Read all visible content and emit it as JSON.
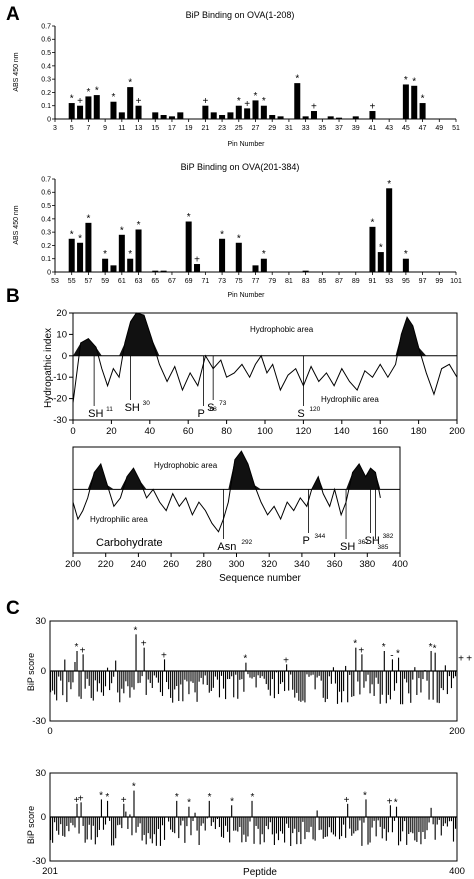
{
  "panel_labels": [
    "A",
    "B",
    "C"
  ],
  "chart_data": [
    {
      "panel": "A",
      "type": "bar",
      "title": "BiP Binding on OVA(1-208)",
      "xlabel": "Pin Number",
      "ylabel": "ABS 450 nm",
      "xlim": [
        3,
        51
      ],
      "ylim": [
        0,
        0.7
      ],
      "xticks": [
        3,
        5,
        7,
        9,
        11,
        13,
        15,
        17,
        19,
        21,
        23,
        25,
        27,
        29,
        31,
        33,
        35,
        37,
        39,
        41,
        43,
        45,
        47,
        49,
        51
      ],
      "yticks": [
        "0",
        "0.1",
        "0.2",
        "0.3",
        "0.4",
        "0.5",
        "0.6",
        "0.7"
      ],
      "points": [
        {
          "x": 5,
          "y": 0.12,
          "m": "*"
        },
        {
          "x": 6,
          "y": 0.1,
          "m": "+"
        },
        {
          "x": 7,
          "y": 0.17,
          "m": "*"
        },
        {
          "x": 8,
          "y": 0.18,
          "m": "*"
        },
        {
          "x": 10,
          "y": 0.13,
          "m": "*"
        },
        {
          "x": 11,
          "y": 0.05,
          "m": ""
        },
        {
          "x": 12,
          "y": 0.24,
          "m": "*"
        },
        {
          "x": 13,
          "y": 0.1,
          "m": "+"
        },
        {
          "x": 15,
          "y": 0.05,
          "m": ""
        },
        {
          "x": 16,
          "y": 0.03,
          "m": ""
        },
        {
          "x": 17,
          "y": 0.02,
          "m": ""
        },
        {
          "x": 18,
          "y": 0.05,
          "m": ""
        },
        {
          "x": 21,
          "y": 0.1,
          "m": "+"
        },
        {
          "x": 22,
          "y": 0.05,
          "m": ""
        },
        {
          "x": 23,
          "y": 0.03,
          "m": ""
        },
        {
          "x": 24,
          "y": 0.05,
          "m": ""
        },
        {
          "x": 25,
          "y": 0.1,
          "m": "*"
        },
        {
          "x": 26,
          "y": 0.08,
          "m": "+"
        },
        {
          "x": 27,
          "y": 0.14,
          "m": "*"
        },
        {
          "x": 28,
          "y": 0.1,
          "m": "*"
        },
        {
          "x": 29,
          "y": 0.03,
          "m": ""
        },
        {
          "x": 30,
          "y": 0.02,
          "m": ""
        },
        {
          "x": 32,
          "y": 0.27,
          "m": "*"
        },
        {
          "x": 33,
          "y": 0.02,
          "m": ""
        },
        {
          "x": 34,
          "y": 0.06,
          "m": "+"
        },
        {
          "x": 36,
          "y": 0.02,
          "m": ""
        },
        {
          "x": 37,
          "y": 0.01,
          "m": ""
        },
        {
          "x": 39,
          "y": 0.02,
          "m": ""
        },
        {
          "x": 41,
          "y": 0.06,
          "m": "+"
        },
        {
          "x": 45,
          "y": 0.26,
          "m": "*"
        },
        {
          "x": 46,
          "y": 0.25,
          "m": "*"
        },
        {
          "x": 47,
          "y": 0.12,
          "m": "*"
        }
      ]
    },
    {
      "panel": "A",
      "type": "bar",
      "title": "BiP Binding on OVA(201-384)",
      "xlabel": "Pin Number",
      "ylabel": "ABS 450 nm",
      "xlim": [
        53,
        101
      ],
      "ylim": [
        0,
        0.7
      ],
      "xticks": [
        53,
        55,
        57,
        59,
        61,
        63,
        65,
        67,
        69,
        71,
        73,
        75,
        77,
        79,
        81,
        83,
        85,
        87,
        89,
        91,
        93,
        95,
        97,
        99,
        101
      ],
      "yticks": [
        "0",
        "0.1",
        "0.2",
        "0.3",
        "0.4",
        "0.5",
        "0.6",
        "0.7"
      ],
      "points": [
        {
          "x": 55,
          "y": 0.25,
          "m": "*"
        },
        {
          "x": 56,
          "y": 0.22,
          "m": "*"
        },
        {
          "x": 57,
          "y": 0.37,
          "m": "*"
        },
        {
          "x": 59,
          "y": 0.1,
          "m": "*"
        },
        {
          "x": 60,
          "y": 0.05,
          "m": ""
        },
        {
          "x": 61,
          "y": 0.28,
          "m": "*"
        },
        {
          "x": 62,
          "y": 0.1,
          "m": "*"
        },
        {
          "x": 63,
          "y": 0.32,
          "m": "*"
        },
        {
          "x": 65,
          "y": 0.01,
          "m": ""
        },
        {
          "x": 66,
          "y": 0.01,
          "m": ""
        },
        {
          "x": 69,
          "y": 0.38,
          "m": "*"
        },
        {
          "x": 70,
          "y": 0.06,
          "m": "+"
        },
        {
          "x": 73,
          "y": 0.25,
          "m": "*"
        },
        {
          "x": 75,
          "y": 0.22,
          "m": "*"
        },
        {
          "x": 77,
          "y": 0.05,
          "m": ""
        },
        {
          "x": 78,
          "y": 0.1,
          "m": "*"
        },
        {
          "x": 83,
          "y": 0.01,
          "m": ""
        },
        {
          "x": 91,
          "y": 0.34,
          "m": "*"
        },
        {
          "x": 92,
          "y": 0.15,
          "m": "*"
        },
        {
          "x": 93,
          "y": 0.63,
          "m": "*"
        },
        {
          "x": 95,
          "y": 0.1,
          "m": "*"
        }
      ]
    },
    {
      "panel": "B",
      "type": "line",
      "ylabel": "Hydropathic index",
      "xlabel": "",
      "xlim": [
        0,
        200
      ],
      "ylim": [
        -30,
        20
      ],
      "xticks": [
        0,
        20,
        40,
        60,
        80,
        100,
        120,
        140,
        160,
        180,
        200
      ],
      "yticks": [
        -30,
        -20,
        -10,
        0,
        10,
        20
      ],
      "region_labels": [
        "Hydrophobic area",
        "Hydrophilic area"
      ],
      "annotations": [
        {
          "text": "SH",
          "sup": "11",
          "x": 11
        },
        {
          "text": "SH",
          "sup": "30",
          "x": 30
        },
        {
          "text": "P",
          "sup": "68",
          "x": 68
        },
        {
          "text": "S",
          "sup": "73",
          "x": 73
        },
        {
          "text": "S",
          "sup": "120",
          "x": 120
        }
      ],
      "profile": [
        [
          0,
          -22
        ],
        [
          4,
          6
        ],
        [
          8,
          8
        ],
        [
          12,
          4
        ],
        [
          15,
          -6
        ],
        [
          18,
          -14
        ],
        [
          21,
          -6
        ],
        [
          24,
          -10
        ],
        [
          27,
          6
        ],
        [
          30,
          16
        ],
        [
          33,
          20
        ],
        [
          37,
          19
        ],
        [
          41,
          8
        ],
        [
          45,
          -4
        ],
        [
          49,
          -12
        ],
        [
          53,
          -5
        ],
        [
          57,
          -16
        ],
        [
          61,
          -8
        ],
        [
          65,
          -14
        ],
        [
          69,
          0
        ],
        [
          73,
          -6
        ],
        [
          77,
          -2
        ],
        [
          80,
          -10
        ],
        [
          84,
          -8
        ],
        [
          88,
          -4
        ],
        [
          92,
          -10
        ],
        [
          95,
          -4
        ],
        [
          98,
          0
        ],
        [
          101,
          -8
        ],
        [
          104,
          -4
        ],
        [
          108,
          -16
        ],
        [
          112,
          -9
        ],
        [
          116,
          -6
        ],
        [
          120,
          -14
        ],
        [
          124,
          -5
        ],
        [
          128,
          -12
        ],
        [
          132,
          -8
        ],
        [
          136,
          -14
        ],
        [
          140,
          -6
        ],
        [
          144,
          -12
        ],
        [
          148,
          -16
        ],
        [
          152,
          -7
        ],
        [
          156,
          -10
        ],
        [
          160,
          -4
        ],
        [
          164,
          -10
        ],
        [
          168,
          -4
        ],
        [
          171,
          10
        ],
        [
          174,
          18
        ],
        [
          177,
          14
        ],
        [
          180,
          4
        ],
        [
          184,
          -8
        ],
        [
          188,
          -18
        ],
        [
          192,
          -6
        ],
        [
          196,
          -4
        ],
        [
          200,
          -10
        ]
      ]
    },
    {
      "panel": "B",
      "type": "line",
      "xlabel": "Sequence number",
      "ylabel": "",
      "xlim": [
        200,
        400
      ],
      "ylim": [
        -30,
        20
      ],
      "xticks": [
        200,
        220,
        240,
        260,
        280,
        300,
        320,
        340,
        360,
        380,
        400
      ],
      "region_labels": [
        "Hydrophobic area",
        "Hydrophilic area",
        "Carbohydrate"
      ],
      "annotations": [
        {
          "text": "Asn",
          "sup": "292",
          "x": 292
        },
        {
          "text": "P",
          "sup": "344",
          "x": 344
        },
        {
          "text": "SH",
          "sup": "367",
          "x": 367
        },
        {
          "text": "SH",
          "sup": "382",
          "x": 382
        },
        {
          "text": "",
          "sup": "385",
          "x": 385
        }
      ],
      "profile": [
        [
          200,
          -6
        ],
        [
          203,
          -14
        ],
        [
          206,
          -10
        ],
        [
          209,
          -4
        ],
        [
          213,
          8
        ],
        [
          217,
          12
        ],
        [
          221,
          2
        ],
        [
          225,
          -8
        ],
        [
          229,
          -4
        ],
        [
          233,
          6
        ],
        [
          237,
          10
        ],
        [
          241,
          4
        ],
        [
          245,
          -4
        ],
        [
          249,
          0
        ],
        [
          253,
          -6
        ],
        [
          257,
          -10
        ],
        [
          261,
          -2
        ],
        [
          265,
          -8
        ],
        [
          269,
          -4
        ],
        [
          273,
          -12
        ],
        [
          277,
          -6
        ],
        [
          281,
          -10
        ],
        [
          285,
          -16
        ],
        [
          289,
          -20
        ],
        [
          292,
          -14
        ],
        [
          295,
          -6
        ],
        [
          299,
          14
        ],
        [
          303,
          18
        ],
        [
          307,
          12
        ],
        [
          311,
          2
        ],
        [
          315,
          -6
        ],
        [
          319,
          -12
        ],
        [
          323,
          -8
        ],
        [
          327,
          -14
        ],
        [
          331,
          -6
        ],
        [
          335,
          -10
        ],
        [
          339,
          -4
        ],
        [
          343,
          -8
        ],
        [
          346,
          0
        ],
        [
          350,
          6
        ],
        [
          353,
          -2
        ],
        [
          357,
          -8
        ],
        [
          360,
          0
        ],
        [
          364,
          -12
        ],
        [
          367,
          -6
        ],
        [
          371,
          8
        ],
        [
          375,
          12
        ],
        [
          379,
          6
        ],
        [
          382,
          10
        ],
        [
          385,
          8
        ],
        [
          388,
          -4
        ]
      ]
    },
    {
      "panel": "C",
      "type": "bar",
      "ylabel": "BiP score",
      "xlabel": "",
      "xlim": [
        0,
        200
      ],
      "ylim": [
        -30,
        30
      ],
      "xticks": [
        0,
        200
      ],
      "yticks": [
        30,
        0,
        -30
      ],
      "star_markers": [
        {
          "x": 13,
          "y": 12,
          "m": "*"
        },
        {
          "x": 16,
          "y": 10,
          "m": "+"
        },
        {
          "x": 42,
          "y": 22,
          "m": "*"
        },
        {
          "x": 46,
          "y": 14,
          "m": "+"
        },
        {
          "x": 56,
          "y": 7,
          "m": "+"
        },
        {
          "x": 96,
          "y": 5,
          "m": "*"
        },
        {
          "x": 116,
          "y": 4,
          "m": "+"
        },
        {
          "x": 150,
          "y": 14,
          "m": "*"
        },
        {
          "x": 153,
          "y": 10,
          "m": "+"
        },
        {
          "x": 164,
          "y": 12,
          "m": "*"
        },
        {
          "x": 168,
          "y": 7,
          "m": "-"
        },
        {
          "x": 171,
          "y": 8,
          "m": "*"
        },
        {
          "x": 187,
          "y": 12,
          "m": "*"
        },
        {
          "x": 189,
          "y": 11,
          "m": "*"
        },
        {
          "x": 202,
          "y": 5,
          "m": "+"
        },
        {
          "x": 206,
          "y": 5,
          "m": "+"
        }
      ],
      "series_note": "dense per-peptide bars between -30 and 30"
    },
    {
      "panel": "C",
      "type": "bar",
      "ylabel": "BiP score",
      "xlabel": "Peptide",
      "xlim": [
        201,
        400
      ],
      "ylim": [
        -30,
        30
      ],
      "xticks": [
        201,
        400
      ],
      "yticks": [
        30,
        0,
        -30
      ],
      "star_markers": [
        {
          "x": 214,
          "y": 9,
          "m": "+"
        },
        {
          "x": 216,
          "y": 10,
          "m": "+"
        },
        {
          "x": 226,
          "y": 12,
          "m": "*"
        },
        {
          "x": 229,
          "y": 11,
          "m": "*"
        },
        {
          "x": 237,
          "y": 9,
          "m": "+"
        },
        {
          "x": 242,
          "y": 18,
          "m": "*"
        },
        {
          "x": 263,
          "y": 11,
          "m": "*"
        },
        {
          "x": 269,
          "y": 7,
          "m": "*"
        },
        {
          "x": 279,
          "y": 11,
          "m": "*"
        },
        {
          "x": 290,
          "y": 8,
          "m": "*"
        },
        {
          "x": 300,
          "y": 11,
          "m": "*"
        },
        {
          "x": 346,
          "y": 9,
          "m": "+"
        },
        {
          "x": 355,
          "y": 12,
          "m": "*"
        },
        {
          "x": 367,
          "y": 8,
          "m": "+"
        },
        {
          "x": 370,
          "y": 7,
          "m": "*"
        }
      ]
    }
  ]
}
